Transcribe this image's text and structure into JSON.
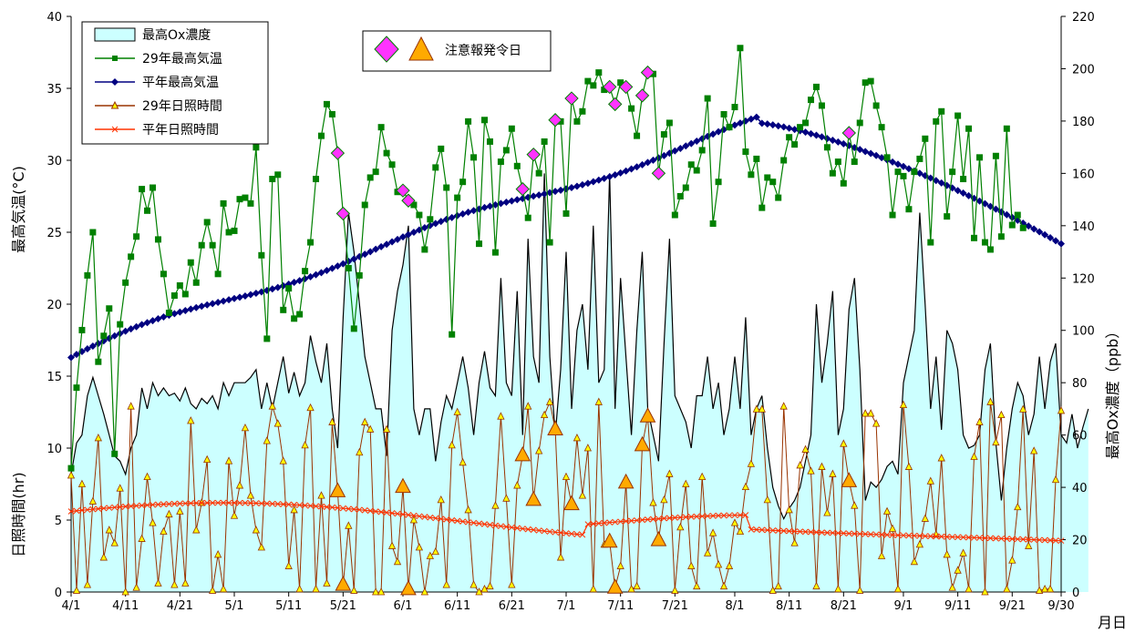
{
  "chart_data": {
    "type": "line",
    "left_axis": {
      "label_upper": "最高気温(°C)",
      "label_lower": "日照時間(hr)",
      "ylim": [
        0,
        40
      ],
      "ticks": [
        "0",
        "5",
        "10",
        "15",
        "20",
        "25",
        "30",
        "35",
        "40"
      ]
    },
    "right_axis": {
      "label": "最高Ox濃度（ppb）",
      "ylim": [
        0,
        220
      ],
      "ticks": [
        "0",
        "20",
        "40",
        "60",
        "80",
        "100",
        "120",
        "140",
        "160",
        "180",
        "200",
        "220"
      ]
    },
    "x_axis": {
      "label": "月日",
      "tick_labels": [
        "4/1",
        "4/11",
        "4/21",
        "5/1",
        "5/11",
        "5/21",
        "6/1",
        "6/11",
        "6/21",
        "7/1",
        "7/11",
        "7/21",
        "8/1",
        "8/11",
        "8/21",
        "9/1",
        "9/11",
        "9/21",
        "9/30"
      ],
      "tick_day_index": [
        0,
        10,
        20,
        30,
        40,
        50,
        61,
        71,
        81,
        91,
        101,
        111,
        122,
        132,
        142,
        153,
        163,
        173,
        182
      ]
    },
    "legend": [
      {
        "name": "最高Ox濃度",
        "kind": "area"
      },
      {
        "name": "29年最高気温",
        "kind": "line-square"
      },
      {
        "name": "平年最高気温",
        "kind": "line-diamond"
      },
      {
        "name": "29年日照時間",
        "kind": "line-triangle"
      },
      {
        "name": "平年日照時間",
        "kind": "line-x"
      }
    ],
    "alert_legend": {
      "label": "注意報発令日"
    },
    "colors": {
      "ox_fill": "#ccffff",
      "ox_line": "#000000",
      "temp29": "#008000",
      "temp29_marker": "#33aa33",
      "tempAvg": "#000080",
      "sun29": "#993300",
      "sun29_marker": "#ffff00",
      "sunAvg": "#ff3300",
      "alert_diamond": "#ff33ff",
      "alert_triangle": "#ffaa00"
    },
    "series": {
      "ox_ppb": [
        45,
        57,
        60,
        75,
        82,
        75,
        68,
        60,
        52,
        50,
        45,
        55,
        60,
        78,
        70,
        80,
        75,
        78,
        75,
        76,
        73,
        78,
        72,
        70,
        74,
        72,
        75,
        70,
        80,
        75,
        80,
        80,
        80,
        82,
        85,
        70,
        80,
        70,
        80,
        90,
        76,
        84,
        75,
        80,
        98,
        88,
        80,
        95,
        70,
        55,
        105,
        145,
        130,
        110,
        90,
        80,
        70,
        70,
        52,
        100,
        115,
        125,
        140,
        70,
        60,
        70,
        70,
        50,
        65,
        75,
        70,
        80,
        90,
        78,
        60,
        80,
        92,
        78,
        75,
        120,
        80,
        75,
        115,
        60,
        135,
        90,
        80,
        160,
        90,
        60,
        85,
        130,
        70,
        100,
        110,
        85,
        140,
        80,
        85,
        160,
        70,
        120,
        90,
        60,
        100,
        130,
        70,
        60,
        50,
        95,
        135,
        75,
        70,
        65,
        55,
        75,
        75,
        90,
        70,
        80,
        60,
        70,
        90,
        70,
        105,
        60,
        70,
        75,
        55,
        40,
        33,
        28,
        32,
        35,
        40,
        50,
        60,
        110,
        80,
        95,
        115,
        60,
        70,
        108,
        120,
        85,
        35,
        42,
        40,
        43,
        48,
        50,
        45,
        80,
        90,
        100,
        145,
        110,
        70,
        90,
        62,
        100,
        95,
        85,
        60,
        55,
        56,
        60,
        85,
        95,
        57,
        35,
        55,
        70,
        80,
        75,
        60,
        68,
        90,
        70,
        88,
        95,
        60,
        57,
        68,
        55,
        63,
        70
      ],
      "temp29": [
        8.6,
        14.2,
        18.2,
        22,
        25,
        16,
        17.8,
        19.7,
        9.6,
        18.6,
        21.5,
        23.3,
        24.7,
        28,
        26.5,
        28.1,
        24.5,
        22.1,
        19.4,
        20.6,
        21.3,
        20.7,
        22.9,
        21.5,
        24.1,
        25.7,
        24.1,
        22.1,
        27,
        25,
        25.1,
        27.3,
        27.4,
        27,
        30.9,
        23.4,
        17.6,
        28.7,
        29,
        19.6,
        21.1,
        19,
        19.3,
        22.3,
        24.3,
        28.7,
        31.7,
        33.9,
        33.2,
        30.5,
        26.3,
        22.5,
        18.3,
        22,
        26.9,
        28.8,
        29.2,
        32.3,
        30.5,
        29.7,
        27.8,
        27.9,
        27.2,
        26.9,
        26.2,
        23.8,
        25.9,
        29.5,
        30.8,
        28.1,
        17.9,
        27.4,
        28.5,
        32.7,
        30.2,
        24.2,
        32.8,
        31.3,
        23.6,
        29.9,
        30.7,
        32.2,
        29.6,
        28,
        26,
        30.4,
        29.1,
        31.3,
        24.3,
        32.8,
        32.7,
        26.3,
        34.3,
        32.7,
        33.4,
        35.5,
        35.2,
        36.1,
        34.9,
        35.1,
        33.9,
        35.4,
        35.1,
        33.6,
        31.7,
        34.5,
        36.1,
        36,
        29.1,
        31.8,
        32.6,
        26.2,
        27.5,
        28.1,
        29.7,
        29.3,
        30.7,
        34.3,
        25.6,
        28.5,
        33.2,
        32.3,
        33.7,
        37.8,
        30.6,
        29,
        30.1,
        26.7,
        28.8,
        28.5,
        27.4,
        30,
        31.6,
        31.1,
        32.3,
        32.6,
        34.2,
        35.1,
        33.8,
        30.9,
        29.1,
        29.9,
        28.4,
        31.9,
        29.9,
        32.6,
        35.4,
        35.5,
        33.8,
        32.3,
        30.2,
        26.2,
        29.2,
        28.9,
        26.6,
        29.2,
        30.1,
        31.5,
        24.3,
        32.7,
        33.4,
        26.1,
        29.2,
        33.1,
        28.7,
        32.2,
        24.6,
        30.2,
        24.3,
        23.8,
        30.3,
        24.7,
        32.2,
        25.5,
        26.2,
        25.3
      ]
    },
    "alert_day_index": [
      49,
      50,
      61,
      62,
      83,
      85,
      89,
      92,
      99,
      100,
      102,
      105,
      106,
      108,
      143
    ]
  }
}
